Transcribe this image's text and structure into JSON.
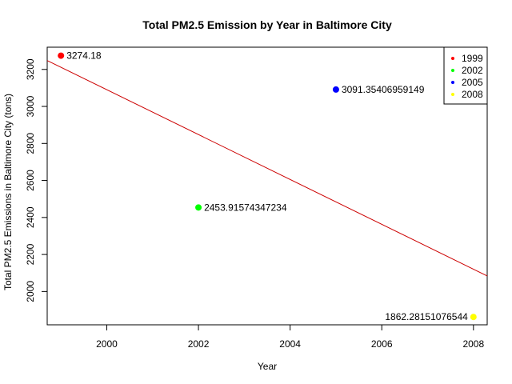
{
  "chart_data": {
    "type": "scatter",
    "title": "Total PM2.5 Emission by Year in Baltimore City",
    "xlabel": "Year",
    "ylabel": "Total PM2.5 Emissions in Baltimore City (tons)",
    "xlim": [
      1998.7,
      2008.3
    ],
    "ylim": [
      1820,
      3320
    ],
    "xticks": [
      2000,
      2002,
      2004,
      2006,
      2008
    ],
    "yticks": [
      2000,
      2200,
      2400,
      2600,
      2800,
      3000,
      3200
    ],
    "grid": false,
    "legend_position": "top-right",
    "points": [
      {
        "x": 1999,
        "y": 3274.18,
        "label": "3274.18",
        "color": "#ff0000"
      },
      {
        "x": 2002,
        "y": 2453.91574347234,
        "label": "2453.91574347234",
        "color": "#00ff00"
      },
      {
        "x": 2005,
        "y": 3091.35406959149,
        "label": "3091.35406959149",
        "color": "#0000ff"
      },
      {
        "x": 2008,
        "y": 1862.28151076544,
        "label": "1862.28151076544",
        "color": "#ffff00"
      }
    ],
    "trend_line": {
      "color": "#cc0000",
      "y_at_xmin": 3248,
      "y_at_xmax": 2084
    },
    "legend": [
      {
        "label": "1999",
        "color": "#ff0000"
      },
      {
        "label": "2002",
        "color": "#00ff00"
      },
      {
        "label": "2005",
        "color": "#0000ff"
      },
      {
        "label": "2008",
        "color": "#ffff00"
      }
    ]
  }
}
